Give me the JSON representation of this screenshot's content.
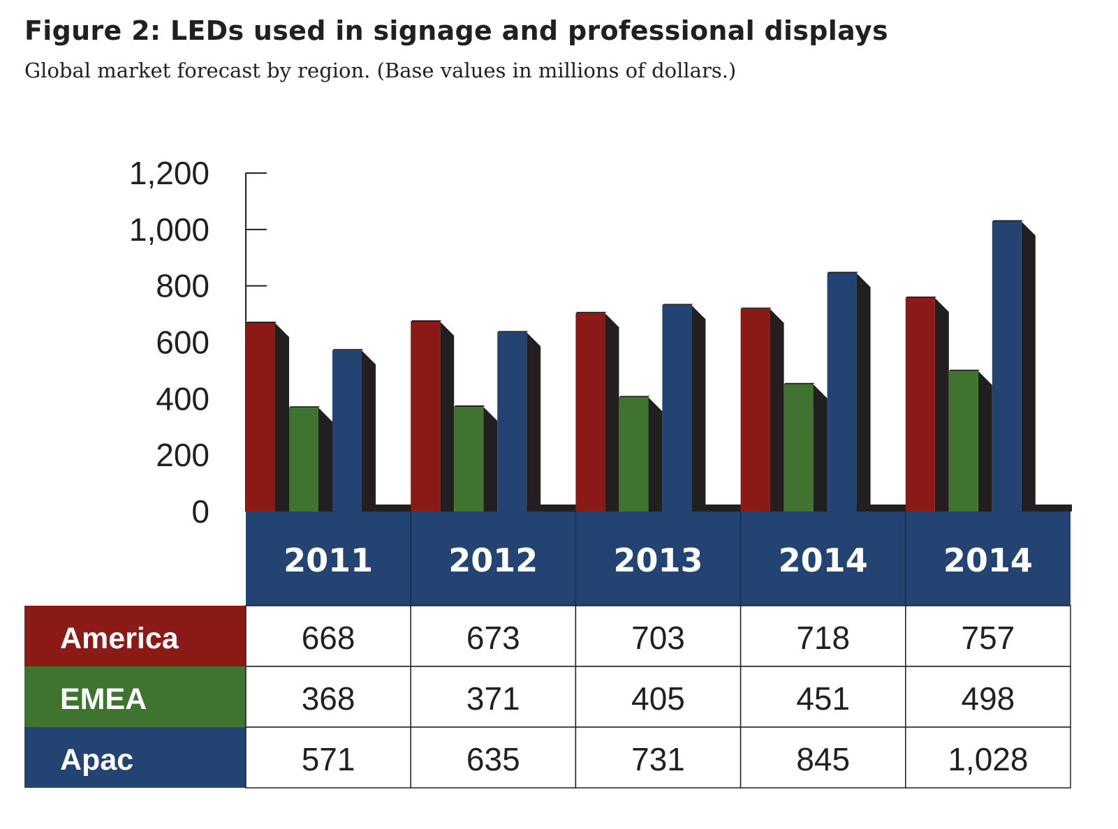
{
  "chart_data": {
    "type": "bar",
    "title": "Figure 2: LEDs used in signage and professional displays",
    "subtitle": "Global market forecast by region. (Base values in millions of dollars.)",
    "categories": [
      "2011",
      "2012",
      "2013",
      "2014",
      "2014"
    ],
    "series": [
      {
        "name": "America",
        "color": "#8b1a17",
        "values": [
          668,
          673,
          703,
          718,
          757
        ],
        "labels": [
          "668",
          "673",
          "703",
          "718",
          "757"
        ]
      },
      {
        "name": "EMEA",
        "color": "#3f7430",
        "values": [
          368,
          371,
          405,
          451,
          498
        ],
        "labels": [
          "368",
          "371",
          "405",
          "451",
          "498"
        ]
      },
      {
        "name": "Apac",
        "color": "#234473",
        "values": [
          571,
          635,
          731,
          845,
          1028
        ],
        "labels": [
          "571",
          "635",
          "731",
          "845",
          "1,028"
        ]
      }
    ],
    "ylim": [
      0,
      1200
    ],
    "yticks": [
      0,
      200,
      400,
      600,
      800,
      1000,
      1200
    ],
    "ytick_labels": [
      "0",
      "200",
      "400",
      "600",
      "800",
      "1,000",
      "1,200"
    ],
    "grid": false,
    "data_table": true,
    "header_color": "#234473",
    "shadow_color": "#231f20"
  }
}
